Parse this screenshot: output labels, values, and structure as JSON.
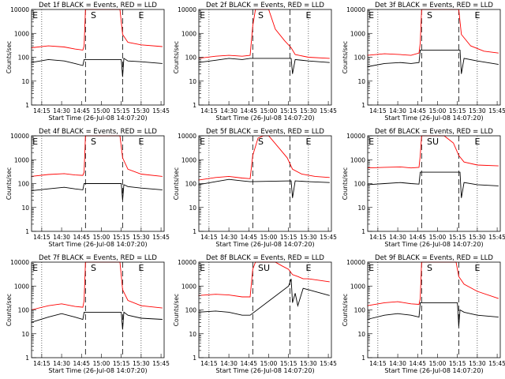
{
  "chart_data": [
    {
      "type": "line",
      "title": "Det 1f BLACK = Events, RED = LLD",
      "xlabel": "Start Time (26-Jul-08 14:07:20)",
      "ylabel": "Counts/sec",
      "yscale": "log",
      "ylim": [
        1,
        10000
      ],
      "xlim": [
        "14:07:20",
        "15:47:20"
      ],
      "x_ticks": [
        "14:15",
        "14:30",
        "14:45",
        "15:00",
        "15:15",
        "15:30",
        "15:45"
      ],
      "y_ticks": [
        "1",
        "10",
        "100",
        "1000",
        "10000"
      ],
      "markers": [
        "E",
        "S",
        "E"
      ],
      "series": [
        {
          "color": "#ff0000",
          "x": [
            "14:07",
            "14:20",
            "14:32",
            "14:40",
            "14:46",
            "14:47",
            "14:48",
            "15:10",
            "15:14",
            "15:16",
            "15:20",
            "15:30",
            "15:46"
          ],
          "values": [
            250,
            300,
            270,
            220,
            200,
            300,
            10000,
            10000,
            10000,
            900,
            420,
            330,
            280
          ]
        },
        {
          "color": "#000000",
          "x": [
            "14:07",
            "14:20",
            "14:32",
            "14:40",
            "14:46",
            "14:47",
            "15:15",
            "15:16",
            "15:17",
            "15:20",
            "15:30",
            "15:46"
          ],
          "values": [
            60,
            80,
            70,
            55,
            45,
            80,
            80,
            15,
            90,
            70,
            65,
            55
          ]
        }
      ]
    },
    {
      "type": "line",
      "title": "Det 2f BLACK = Events, RED = LLD",
      "xlabel": "Start Time (26-Jul-08 14:07:20)",
      "ylabel": "Counts/sec",
      "yscale": "log",
      "ylim": [
        1,
        10000
      ],
      "xlim": [
        "14:07:20",
        "15:47:20"
      ],
      "x_ticks": [
        "14:15",
        "14:30",
        "14:45",
        "15:00",
        "15:15",
        "15:30",
        "15:45"
      ],
      "y_ticks": [
        "1",
        "10",
        "100",
        "1000",
        "10000"
      ],
      "markers": [
        "E",
        "S",
        "E"
      ],
      "series": [
        {
          "color": "#ff0000",
          "x": [
            "14:07",
            "14:20",
            "14:30",
            "14:40",
            "14:46",
            "14:48",
            "14:50",
            "14:55",
            "15:00",
            "15:05",
            "15:12",
            "15:17",
            "15:20",
            "15:30",
            "15:46"
          ],
          "values": [
            90,
            110,
            120,
            110,
            120,
            2000,
            10000,
            10000,
            10000,
            1500,
            500,
            250,
            130,
            100,
            90
          ]
        },
        {
          "color": "#000000",
          "x": [
            "14:07",
            "14:20",
            "14:30",
            "14:40",
            "14:46",
            "15:17",
            "15:18",
            "15:20",
            "15:30",
            "15:46"
          ],
          "values": [
            60,
            75,
            90,
            80,
            90,
            90,
            20,
            80,
            70,
            60
          ]
        }
      ]
    },
    {
      "type": "line",
      "title": "Det 3f BLACK = Events, RED = LLD",
      "xlabel": "Start Time (26-Jul-08 14:07:20)",
      "ylabel": "Counts/sec",
      "yscale": "log",
      "ylim": [
        1,
        10000
      ],
      "xlim": [
        "14:07:20",
        "15:47:20"
      ],
      "x_ticks": [
        "14:15",
        "14:30",
        "14:45",
        "15:00",
        "15:15",
        "15:30",
        "15:45"
      ],
      "y_ticks": [
        "1",
        "10",
        "100",
        "1000",
        "10000"
      ],
      "markers": [
        "E",
        "S",
        "E"
      ],
      "series": [
        {
          "color": "#ff0000",
          "x": [
            "14:07",
            "14:20",
            "14:32",
            "14:40",
            "14:46",
            "14:47",
            "14:48",
            "15:10",
            "15:16",
            "15:18",
            "15:25",
            "15:35",
            "15:46"
          ],
          "values": [
            120,
            140,
            130,
            120,
            150,
            400,
            10000,
            10000,
            10000,
            900,
            300,
            180,
            150
          ]
        },
        {
          "color": "#000000",
          "x": [
            "14:07",
            "14:20",
            "14:32",
            "14:40",
            "14:46",
            "14:47",
            "15:17",
            "15:18",
            "15:20",
            "15:30",
            "15:46"
          ],
          "values": [
            40,
            55,
            60,
            55,
            60,
            200,
            200,
            20,
            90,
            70,
            50
          ]
        }
      ]
    },
    {
      "type": "line",
      "title": "Det 4f BLACK = Events, RED = LLD",
      "xlabel": "Start Time (26-Jul-08 14:07:20)",
      "ylabel": "Counts/sec",
      "yscale": "log",
      "ylim": [
        1,
        10000
      ],
      "xlim": [
        "14:07:20",
        "15:47:20"
      ],
      "x_ticks": [
        "14:15",
        "14:30",
        "14:45",
        "15:00",
        "15:15",
        "15:30",
        "15:45"
      ],
      "y_ticks": [
        "1",
        "10",
        "100",
        "1000",
        "10000"
      ],
      "markers": [
        "E",
        "S",
        "E"
      ],
      "series": [
        {
          "color": "#ff0000",
          "x": [
            "14:07",
            "14:20",
            "14:32",
            "14:40",
            "14:46",
            "14:47",
            "14:48",
            "15:10",
            "15:14",
            "15:16",
            "15:20",
            "15:30",
            "15:46"
          ],
          "values": [
            200,
            240,
            260,
            230,
            220,
            300,
            10000,
            10000,
            10000,
            1200,
            400,
            250,
            200
          ]
        },
        {
          "color": "#000000",
          "x": [
            "14:07",
            "14:20",
            "14:32",
            "14:40",
            "14:46",
            "14:47",
            "15:15",
            "15:16",
            "15:17",
            "15:20",
            "15:30",
            "15:46"
          ],
          "values": [
            50,
            60,
            70,
            60,
            55,
            100,
            100,
            20,
            90,
            75,
            65,
            55
          ]
        }
      ]
    },
    {
      "type": "line",
      "title": "Det 5f BLACK = Events, RED = LLD",
      "xlabel": "Start Time (26-Jul-08 14:07:20)",
      "ylabel": "Counts/sec",
      "yscale": "log",
      "ylim": [
        1,
        10000
      ],
      "xlim": [
        "14:07:20",
        "15:47:20"
      ],
      "x_ticks": [
        "14:15",
        "14:30",
        "14:45",
        "15:00",
        "15:15",
        "15:30",
        "15:45"
      ],
      "y_ticks": [
        "1",
        "10",
        "100",
        "1000",
        "10000"
      ],
      "markers": [
        "E",
        "S",
        "E"
      ],
      "series": [
        {
          "color": "#ff0000",
          "x": [
            "14:07",
            "14:20",
            "14:30",
            "14:40",
            "14:46",
            "14:48",
            "14:52",
            "14:56",
            "15:00",
            "15:08",
            "15:14",
            "15:18",
            "15:25",
            "15:35",
            "15:46"
          ],
          "values": [
            140,
            180,
            200,
            170,
            160,
            1500,
            8000,
            10000,
            10000,
            3000,
            1200,
            400,
            250,
            200,
            180
          ]
        },
        {
          "color": "#000000",
          "x": [
            "14:07",
            "14:20",
            "14:30",
            "14:40",
            "14:46",
            "15:17",
            "15:18",
            "15:20",
            "15:30",
            "15:46"
          ],
          "values": [
            90,
            120,
            150,
            130,
            120,
            130,
            25,
            130,
            120,
            110
          ]
        }
      ]
    },
    {
      "type": "line",
      "title": "Det 6f BLACK = Events, RED = LLD",
      "xlabel": "Start Time (26-Jul-08 14:07:20)",
      "ylabel": "Counts/sec",
      "yscale": "log",
      "ylim": [
        1,
        10000
      ],
      "xlim": [
        "14:07:20",
        "15:47:20"
      ],
      "x_ticks": [
        "14:15",
        "14:30",
        "14:45",
        "15:00",
        "15:15",
        "15:30",
        "15:45"
      ],
      "y_ticks": [
        "1",
        "10",
        "100",
        "1000",
        "10000"
      ],
      "markers": [
        "E",
        "SU",
        "E"
      ],
      "series": [
        {
          "color": "#ff0000",
          "x": [
            "14:07",
            "14:20",
            "14:32",
            "14:40",
            "14:46",
            "14:47",
            "14:48",
            "15:05",
            "15:12",
            "15:16",
            "15:20",
            "15:30",
            "15:46"
          ],
          "values": [
            450,
            480,
            500,
            450,
            480,
            1500,
            10000,
            10000,
            5000,
            1500,
            800,
            600,
            550
          ]
        },
        {
          "color": "#000000",
          "x": [
            "14:07",
            "14:20",
            "14:32",
            "14:40",
            "14:46",
            "14:47",
            "15:17",
            "15:18",
            "15:20",
            "15:30",
            "15:46"
          ],
          "values": [
            90,
            100,
            110,
            100,
            95,
            300,
            300,
            25,
            110,
            90,
            80
          ]
        }
      ]
    },
    {
      "type": "line",
      "title": "Det 7f BLACK = Events, RED = LLD",
      "xlabel": "Start Time (26-Jul-08 14:07:20)",
      "ylabel": "Counts/sec",
      "yscale": "log",
      "ylim": [
        1,
        10000
      ],
      "xlim": [
        "14:07:20",
        "15:47:20"
      ],
      "x_ticks": [
        "14:15",
        "14:30",
        "14:45",
        "15:00",
        "15:15",
        "15:30",
        "15:45"
      ],
      "y_ticks": [
        "1",
        "10",
        "100",
        "1000",
        "10000"
      ],
      "markers": [
        "E",
        "S",
        "E"
      ],
      "series": [
        {
          "color": "#ff0000",
          "x": [
            "14:07",
            "14:20",
            "14:30",
            "14:40",
            "14:46",
            "14:47",
            "14:48",
            "15:10",
            "15:14",
            "15:16",
            "15:20",
            "15:30",
            "15:46"
          ],
          "values": [
            100,
            150,
            180,
            140,
            130,
            250,
            10000,
            10000,
            10000,
            700,
            250,
            150,
            120
          ]
        },
        {
          "color": "#000000",
          "x": [
            "14:07",
            "14:20",
            "14:30",
            "14:40",
            "14:46",
            "14:47",
            "15:15",
            "15:16",
            "15:17",
            "15:20",
            "15:30",
            "15:46"
          ],
          "values": [
            30,
            50,
            70,
            50,
            40,
            80,
            80,
            15,
            80,
            60,
            45,
            40
          ]
        }
      ]
    },
    {
      "type": "line",
      "title": "Det 8f BLACK = Events, RED = LLD",
      "xlabel": "Start Time (26-Jul-08 14:07:20)",
      "ylabel": "Counts/sec",
      "yscale": "log",
      "ylim": [
        1,
        10000
      ],
      "xlim": [
        "14:07:20",
        "15:47:20"
      ],
      "x_ticks": [
        "14:15",
        "14:30",
        "14:45",
        "15:00",
        "15:15",
        "15:30",
        "15:45"
      ],
      "y_ticks": [
        "1",
        "10",
        "100",
        "1000",
        "10000"
      ],
      "markers": [
        "E",
        "SU",
        "E"
      ],
      "series": [
        {
          "color": "#ff0000",
          "x": [
            "14:07",
            "14:20",
            "14:30",
            "14:40",
            "14:46",
            "14:48",
            "14:50",
            "15:05",
            "15:10",
            "15:15",
            "15:18",
            "15:22",
            "15:26",
            "15:30",
            "15:46"
          ],
          "values": [
            400,
            450,
            420,
            350,
            350,
            5000,
            10000,
            10000,
            7000,
            5000,
            3000,
            2500,
            2000,
            2000,
            1500
          ]
        },
        {
          "color": "#000000",
          "x": [
            "14:07",
            "14:20",
            "14:30",
            "14:40",
            "14:46",
            "15:15",
            "15:17",
            "15:18",
            "15:20",
            "15:22",
            "15:26",
            "15:30",
            "15:46"
          ],
          "values": [
            80,
            90,
            80,
            60,
            60,
            1000,
            2000,
            200,
            500,
            150,
            800,
            700,
            400
          ]
        }
      ]
    },
    {
      "type": "line",
      "title": "Det 9f BLACK = Events, RED = LLD",
      "xlabel": "Start Time (26-Jul-08 14:07:20)",
      "ylabel": "Counts/sec",
      "yscale": "log",
      "ylim": [
        1,
        10000
      ],
      "xlim": [
        "14:07:20",
        "15:47:20"
      ],
      "x_ticks": [
        "14:15",
        "14:30",
        "14:45",
        "15:00",
        "15:15",
        "15:30",
        "15:45"
      ],
      "y_ticks": [
        "1",
        "10",
        "100",
        "1000",
        "10000"
      ],
      "markers": [
        "E",
        "S",
        "E"
      ],
      "series": [
        {
          "color": "#ff0000",
          "x": [
            "14:07",
            "14:20",
            "14:30",
            "14:40",
            "14:46",
            "14:47",
            "14:48",
            "15:08",
            "15:14",
            "15:16",
            "15:20",
            "15:30",
            "15:46"
          ],
          "values": [
            150,
            200,
            220,
            180,
            170,
            300,
            10000,
            10000,
            10000,
            2500,
            1200,
            600,
            300
          ]
        },
        {
          "color": "#000000",
          "x": [
            "14:07",
            "14:20",
            "14:30",
            "14:40",
            "14:46",
            "14:47",
            "15:15",
            "15:16",
            "15:17",
            "15:20",
            "15:30",
            "15:46"
          ],
          "values": [
            40,
            60,
            70,
            60,
            50,
            200,
            200,
            20,
            100,
            80,
            60,
            50
          ]
        }
      ]
    }
  ]
}
